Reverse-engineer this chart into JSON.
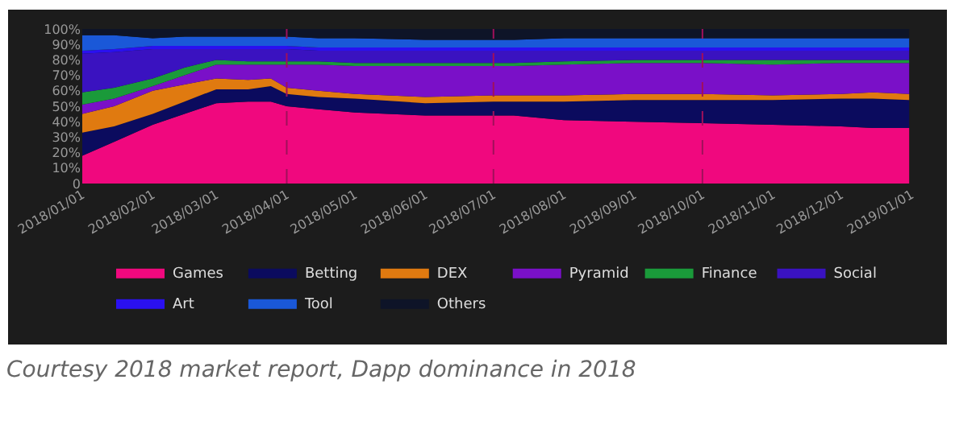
{
  "chart_data": {
    "type": "area",
    "stacked": true,
    "legend": "bottom",
    "grid": false,
    "annotations": [
      "Courtesy 2018 market report, Dapp dominance in 2018"
    ],
    "x": [
      "2018-01-01",
      "2018-01-15",
      "2018-02-01",
      "2018-02-15",
      "2018-03-01",
      "2018-03-15",
      "2018-03-25",
      "2018-04-01",
      "2018-04-15",
      "2018-05-01",
      "2018-06-01",
      "2018-07-01",
      "2018-07-10",
      "2018-08-01",
      "2018-09-01",
      "2018-10-01",
      "2018-11-01",
      "2018-12-01",
      "2018-12-15",
      "2018-12-31"
    ],
    "xlim": [
      "2018-01-01",
      "2019-01-01"
    ],
    "xticks": [
      {
        "value": "2018-01-01",
        "label": "2018/01/01"
      },
      {
        "value": "2018-02-01",
        "label": "2018/02/01"
      },
      {
        "value": "2018-03-01",
        "label": "2018/03/01"
      },
      {
        "value": "2018-04-01",
        "label": "2018/04/01"
      },
      {
        "value": "2018-05-01",
        "label": "2018/05/01"
      },
      {
        "value": "2018-06-01",
        "label": "2018/06/01"
      },
      {
        "value": "2018-07-01",
        "label": "2018/07/01"
      },
      {
        "value": "2018-08-01",
        "label": "2018/08/01"
      },
      {
        "value": "2018-09-01",
        "label": "2018/09/01"
      },
      {
        "value": "2018-10-01",
        "label": "2018/10/01"
      },
      {
        "value": "2018-11-01",
        "label": "2018/11/01"
      },
      {
        "value": "2018-12-01",
        "label": "2018/12/01"
      },
      {
        "value": "2019-01-01",
        "label": "2019/01/01"
      }
    ],
    "ylim": [
      0,
      100
    ],
    "yticks": [
      0,
      {
        "value": 10,
        "label": "10%"
      },
      {
        "value": 20,
        "label": "20%"
      },
      {
        "value": 30,
        "label": "30%"
      },
      {
        "value": 40,
        "label": "40%"
      },
      {
        "value": 50,
        "label": "50%"
      },
      {
        "value": 60,
        "label": "60%"
      },
      {
        "value": 70,
        "label": "70%"
      },
      {
        "value": 80,
        "label": "80%"
      },
      {
        "value": 90,
        "label": "90%"
      },
      {
        "value": 100,
        "label": "100%"
      }
    ],
    "ref_lines": [
      {
        "axis": "x",
        "value": "2018-04-01",
        "color": "#a0105a",
        "line_style": "dashed"
      },
      {
        "axis": "x",
        "value": "2018-07-01",
        "color": "#a0105a",
        "line_style": "dashed"
      },
      {
        "axis": "x",
        "value": "2018-10-01",
        "color": "#a0105a",
        "line_style": "dashed"
      }
    ],
    "series": [
      {
        "name": "Games",
        "color": "#f0087e",
        "values": [
          18,
          27,
          38,
          45,
          52,
          53,
          53,
          50,
          48,
          46,
          44,
          44,
          44,
          41,
          40,
          39,
          38,
          37,
          36,
          36
        ]
      },
      {
        "name": "Betting",
        "color": "#0b0b5e",
        "values": [
          15,
          10,
          7,
          8,
          9,
          8,
          10,
          8,
          8,
          9,
          8,
          9,
          9,
          12,
          14,
          15,
          16,
          18,
          19,
          18
        ]
      },
      {
        "name": "DEX",
        "color": "#e07a10",
        "values": [
          12,
          13,
          15,
          11,
          7,
          6,
          5,
          4,
          4,
          3,
          4,
          4,
          4,
          4,
          4,
          4,
          3,
          3,
          4,
          4
        ]
      },
      {
        "name": "Pyramid",
        "color": "#7a10c8",
        "values": [
          6,
          5,
          3,
          6,
          9,
          10,
          9,
          15,
          17,
          18,
          20,
          19,
          19,
          20,
          20,
          20,
          20,
          20,
          19,
          20
        ]
      },
      {
        "name": "Finance",
        "color": "#1a9a3a",
        "values": [
          8,
          7,
          5,
          5,
          3,
          2,
          2,
          2,
          2,
          2,
          2,
          2,
          2,
          2,
          2,
          2,
          3,
          2,
          2,
          2
        ]
      },
      {
        "name": "Social",
        "color": "#3a12c0",
        "values": [
          25,
          23,
          19,
          12,
          7,
          8,
          8,
          8,
          7,
          8,
          8,
          8,
          8,
          7,
          6,
          6,
          6,
          6,
          6,
          6
        ]
      },
      {
        "name": "Art",
        "color": "#2a10f0",
        "values": [
          2,
          2,
          2,
          2,
          2,
          2,
          2,
          2,
          2,
          2,
          2,
          2,
          2,
          2,
          2,
          2,
          2,
          2,
          2,
          2
        ]
      },
      {
        "name": "Tool",
        "color": "#1a58d8",
        "values": [
          10,
          9,
          5,
          6,
          6,
          6,
          6,
          6,
          6,
          6,
          5,
          5,
          5,
          6,
          6,
          6,
          6,
          6,
          6,
          6
        ]
      },
      {
        "name": "Others",
        "color": "#0e1428",
        "values": [
          4,
          4,
          6,
          5,
          5,
          5,
          5,
          5,
          6,
          6,
          7,
          7,
          7,
          6,
          6,
          6,
          6,
          6,
          6,
          6
        ]
      }
    ]
  }
}
